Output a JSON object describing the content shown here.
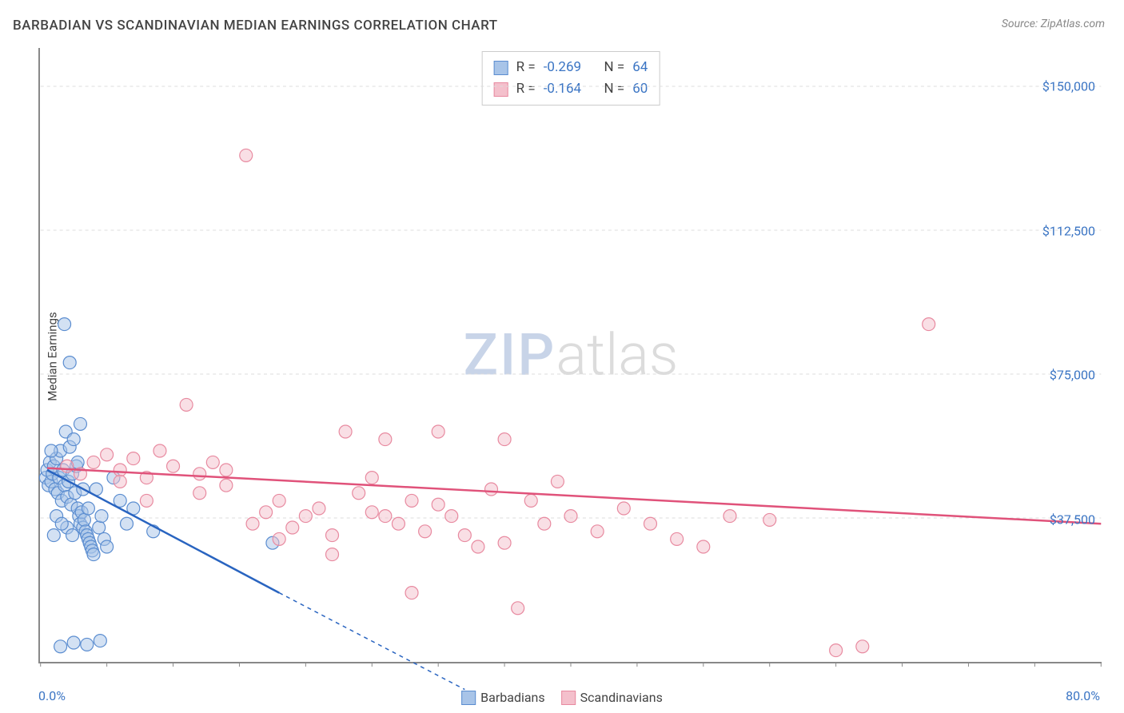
{
  "title": "BARBADIAN VS SCANDINAVIAN MEDIAN EARNINGS CORRELATION CHART",
  "source_label": "Source:",
  "source_name": "ZipAtlas.com",
  "ylabel": "Median Earnings",
  "watermark_a": "ZIP",
  "watermark_b": "atlas",
  "chart": {
    "type": "scatter",
    "background_color": "#ffffff",
    "grid_color": "#dddddd",
    "axis_color": "#888888",
    "tick_label_color": "#3b75c4",
    "xlim": [
      0,
      80
    ],
    "ylim": [
      0,
      160000
    ],
    "x_tick_step": 5,
    "y_gridlines": [
      37500,
      75000,
      112500,
      150000
    ],
    "y_tick_labels": [
      "$37,500",
      "$75,000",
      "$112,500",
      "$150,000"
    ],
    "x_min_label": "0.0%",
    "x_max_label": "80.0%",
    "marker_radius": 8,
    "marker_opacity": 0.5,
    "trend_line_width": 2.5,
    "series": [
      {
        "name": "Barbadians",
        "fill_color": "#a8c4e8",
        "stroke_color": "#5b8dd0",
        "line_color": "#2964c0",
        "R": "-0.269",
        "N": "64",
        "trend": {
          "x1": 0.5,
          "y1": 50000,
          "x2": 18,
          "y2": 18000,
          "dash_x2": 32,
          "dash_y2": -7200
        },
        "points": [
          [
            0.4,
            48000
          ],
          [
            0.5,
            50000
          ],
          [
            0.6,
            46000
          ],
          [
            0.7,
            52000
          ],
          [
            0.8,
            47000
          ],
          [
            0.9,
            49000
          ],
          [
            1.0,
            51000
          ],
          [
            1.1,
            45000
          ],
          [
            1.2,
            53000
          ],
          [
            1.3,
            44000
          ],
          [
            1.4,
            48000
          ],
          [
            1.5,
            55000
          ],
          [
            1.6,
            42000
          ],
          [
            1.7,
            50000
          ],
          [
            1.8,
            46000
          ],
          [
            1.9,
            60000
          ],
          [
            2.0,
            43000
          ],
          [
            2.1,
            47000
          ],
          [
            2.2,
            56000
          ],
          [
            2.3,
            41000
          ],
          [
            2.4,
            49000
          ],
          [
            2.5,
            58000
          ],
          [
            2.6,
            44000
          ],
          [
            2.7,
            51000
          ],
          [
            2.8,
            40000
          ],
          [
            2.9,
            38000
          ],
          [
            3.0,
            36000
          ],
          [
            3.1,
            39000
          ],
          [
            3.2,
            35000
          ],
          [
            3.3,
            37000
          ],
          [
            3.4,
            34000
          ],
          [
            3.5,
            33000
          ],
          [
            3.6,
            32000
          ],
          [
            3.7,
            31000
          ],
          [
            3.8,
            30000
          ],
          [
            3.9,
            29000
          ],
          [
            4.0,
            28000
          ],
          [
            4.2,
            45000
          ],
          [
            4.4,
            35000
          ],
          [
            4.6,
            38000
          ],
          [
            4.8,
            32000
          ],
          [
            5.0,
            30000
          ],
          [
            1.8,
            88000
          ],
          [
            2.2,
            78000
          ],
          [
            5.5,
            48000
          ],
          [
            6.0,
            42000
          ],
          [
            6.5,
            36000
          ],
          [
            7.0,
            40000
          ],
          [
            1.5,
            4000
          ],
          [
            2.5,
            5000
          ],
          [
            3.5,
            4500
          ],
          [
            4.5,
            5500
          ],
          [
            8.5,
            34000
          ],
          [
            3.0,
            62000
          ],
          [
            2.0,
            35000
          ],
          [
            1.2,
            38000
          ],
          [
            0.8,
            55000
          ],
          [
            1.0,
            33000
          ],
          [
            2.4,
            33000
          ],
          [
            3.6,
            40000
          ],
          [
            2.8,
            52000
          ],
          [
            3.2,
            45000
          ],
          [
            17.5,
            31000
          ],
          [
            1.6,
            36000
          ]
        ]
      },
      {
        "name": "Scandinavians",
        "fill_color": "#f4c0cc",
        "stroke_color": "#e88aa0",
        "line_color": "#e0527a",
        "R": "-0.164",
        "N": "60",
        "trend": {
          "x1": 0.5,
          "y1": 50500,
          "x2": 80,
          "y2": 36000
        },
        "points": [
          [
            2,
            51000
          ],
          [
            3,
            49000
          ],
          [
            4,
            52000
          ],
          [
            5,
            54000
          ],
          [
            6,
            50000
          ],
          [
            7,
            53000
          ],
          [
            8,
            48000
          ],
          [
            9,
            55000
          ],
          [
            10,
            51000
          ],
          [
            11,
            67000
          ],
          [
            12,
            49000
          ],
          [
            13,
            52000
          ],
          [
            14,
            46000
          ],
          [
            15.5,
            132000
          ],
          [
            16,
            36000
          ],
          [
            17,
            39000
          ],
          [
            18,
            42000
          ],
          [
            19,
            35000
          ],
          [
            20,
            38000
          ],
          [
            21,
            40000
          ],
          [
            22,
            33000
          ],
          [
            23,
            60000
          ],
          [
            24,
            44000
          ],
          [
            25,
            39000
          ],
          [
            26,
            58000
          ],
          [
            27,
            36000
          ],
          [
            28,
            42000
          ],
          [
            29,
            34000
          ],
          [
            30,
            60000
          ],
          [
            31,
            38000
          ],
          [
            32,
            33000
          ],
          [
            33,
            30000
          ],
          [
            34,
            45000
          ],
          [
            35,
            31000
          ],
          [
            35,
            58000
          ],
          [
            36,
            14000
          ],
          [
            37,
            42000
          ],
          [
            38,
            36000
          ],
          [
            39,
            47000
          ],
          [
            40,
            38000
          ],
          [
            42,
            34000
          ],
          [
            44,
            40000
          ],
          [
            46,
            36000
          ],
          [
            48,
            32000
          ],
          [
            50,
            30000
          ],
          [
            52,
            38000
          ],
          [
            55,
            37000
          ],
          [
            60,
            3000
          ],
          [
            62,
            4000
          ],
          [
            67,
            88000
          ],
          [
            28,
            18000
          ],
          [
            22,
            28000
          ],
          [
            26,
            38000
          ],
          [
            18,
            32000
          ],
          [
            12,
            44000
          ],
          [
            8,
            42000
          ],
          [
            6,
            47000
          ],
          [
            14,
            50000
          ],
          [
            30,
            41000
          ],
          [
            25,
            48000
          ]
        ]
      }
    ]
  },
  "legend": {
    "series1_label": "Barbadians",
    "series2_label": "Scandinavians"
  },
  "stats": {
    "r_prefix": "R =",
    "n_prefix": "N ="
  }
}
